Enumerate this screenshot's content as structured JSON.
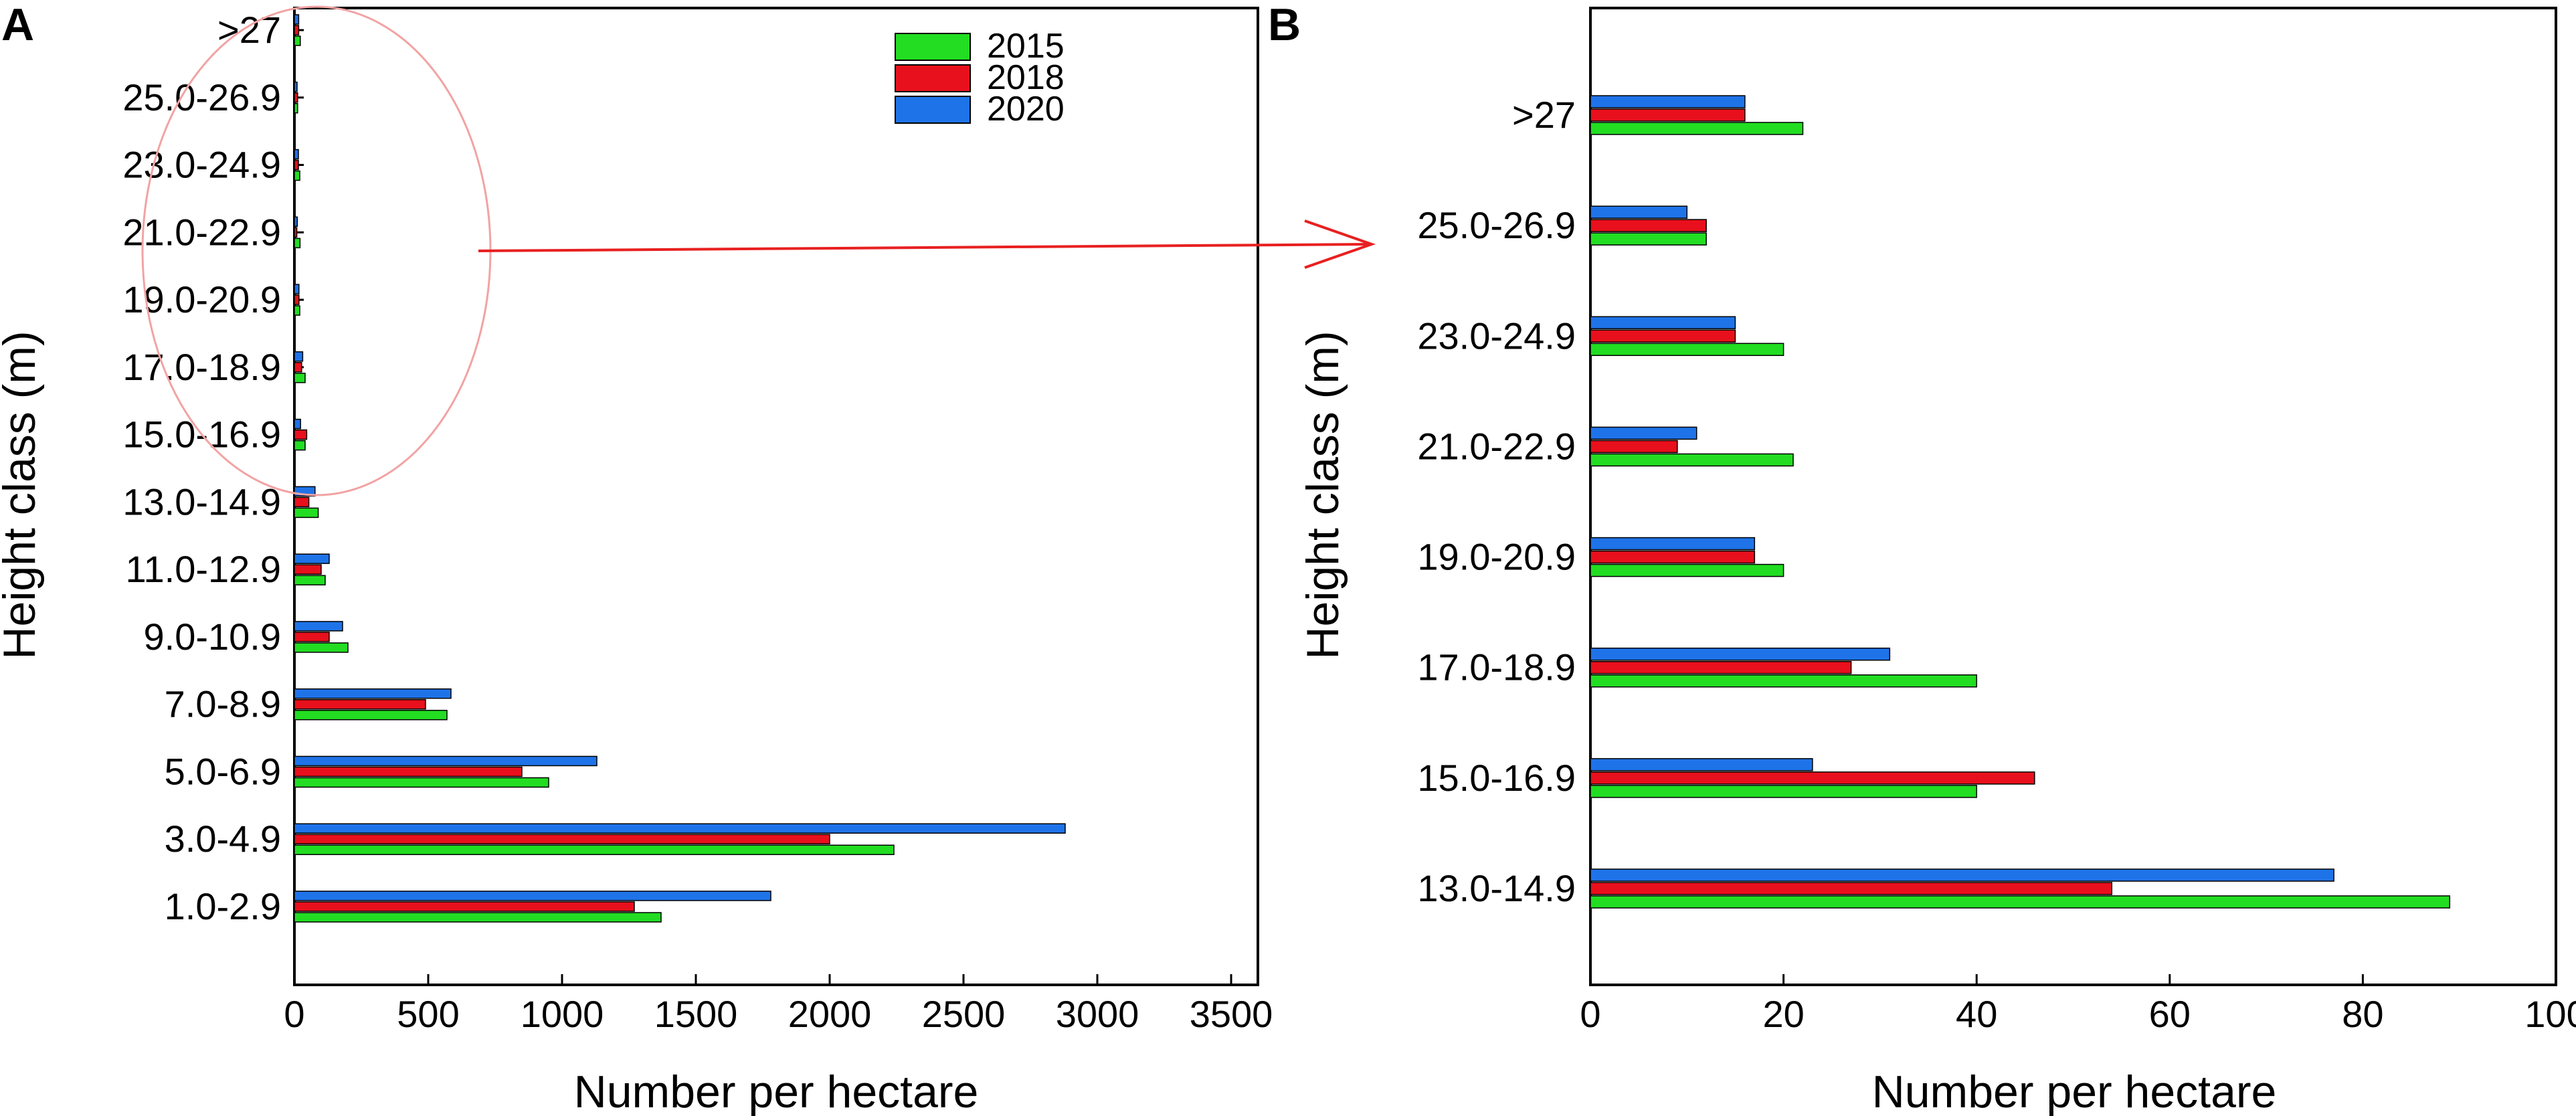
{
  "figure": {
    "panel_a_label": "A",
    "panel_b_label": "B"
  },
  "colors": {
    "2015": "#22dd22",
    "2018": "#e8101c",
    "2020": "#1f73e8",
    "zoom_annotation": "#e82020",
    "zoom_ellipse": "#f2a3a3"
  },
  "chart_data": [
    {
      "id": "A",
      "type": "bar",
      "orientation": "horizontal",
      "title": "",
      "xlabel": "Number per hectare",
      "ylabel": "Height class (m)",
      "xlim": [
        0,
        3500
      ],
      "xticks": [
        0,
        500,
        1000,
        1500,
        2000,
        2500,
        3000,
        3500
      ],
      "categories": [
        "1.0-2.9",
        "3.0-4.9",
        "5.0-6.9",
        "7.0-8.9",
        "9.0-10.9",
        "11.0-12.9",
        "13.0-14.9",
        "15.0-16.9",
        "17.0-18.9",
        "19.0-20.9",
        "21.0-22.9",
        "23.0-24.9",
        "25.0-26.9",
        ">27"
      ],
      "series": [
        {
          "name": "2015",
          "values": [
            1370,
            2240,
            950,
            570,
            200,
            115,
            89,
            40,
            40,
            20,
            21,
            20,
            12,
            22
          ]
        },
        {
          "name": "2018",
          "values": [
            1270,
            2000,
            850,
            490,
            130,
            100,
            54,
            46,
            27,
            17,
            9,
            15,
            12,
            16
          ]
        },
        {
          "name": "2020",
          "values": [
            1780,
            2880,
            1130,
            585,
            180,
            130,
            77,
            23,
            31,
            17,
            11,
            15,
            10,
            16
          ]
        }
      ],
      "legend": {
        "position": "top-right",
        "entries": [
          "2015",
          "2018",
          "2020"
        ]
      },
      "grid": false
    },
    {
      "id": "B",
      "type": "bar",
      "orientation": "horizontal",
      "title": "",
      "xlabel": "Number per hectare",
      "ylabel": "Height class (m)",
      "xlim": [
        0,
        100
      ],
      "xticks": [
        0,
        20,
        40,
        60,
        80,
        100
      ],
      "categories": [
        "13.0-14.9",
        "15.0-16.9",
        "17.0-18.9",
        "19.0-20.9",
        "21.0-22.9",
        "23.0-24.9",
        "25.0-26.9",
        ">27"
      ],
      "series": [
        {
          "name": "2015",
          "values": [
            89,
            40,
            40,
            20,
            21,
            20,
            12,
            22
          ]
        },
        {
          "name": "2018",
          "values": [
            54,
            46,
            27,
            17,
            9,
            15,
            12,
            16
          ]
        },
        {
          "name": "2020",
          "values": [
            77,
            23,
            31,
            17,
            11,
            15,
            10,
            16
          ]
        }
      ],
      "legend": null,
      "grid": false
    }
  ]
}
